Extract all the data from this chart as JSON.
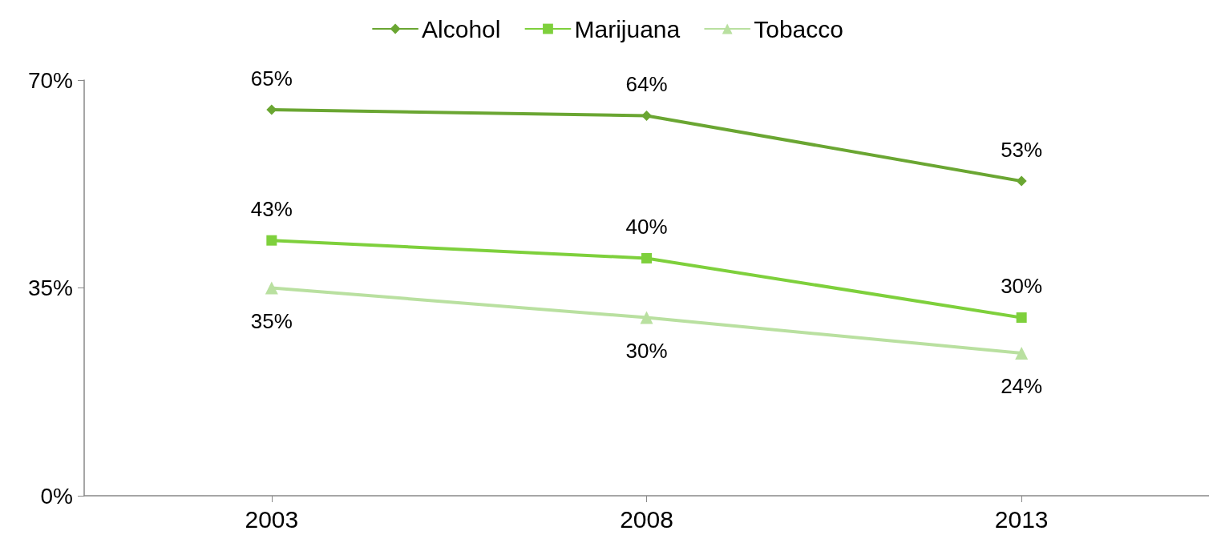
{
  "chart_data": {
    "type": "line",
    "categories": [
      "2003",
      "2008",
      "2013"
    ],
    "series": [
      {
        "name": "Alcohol",
        "color": "#6aa632",
        "marker": "diamond",
        "values": [
          65,
          64,
          53
        ],
        "value_labels": [
          "65%",
          "64%",
          "53%"
        ]
      },
      {
        "name": "Marijuana",
        "color": "#7ed03c",
        "marker": "square",
        "values": [
          43,
          40,
          30
        ],
        "value_labels": [
          "43%",
          "40%",
          "30%"
        ]
      },
      {
        "name": "Tobacco",
        "color": "#b9e0a0",
        "marker": "triangle",
        "values": [
          35,
          30,
          24
        ],
        "value_labels": [
          "35%",
          "30%",
          "24%"
        ]
      }
    ],
    "ylim": [
      0,
      70
    ],
    "yticks": [
      {
        "value": 0,
        "label": "0%"
      },
      {
        "value": 35,
        "label": "35%"
      },
      {
        "value": 70,
        "label": "70%"
      }
    ],
    "grid": false,
    "legend": "top",
    "line_style": "solid"
  }
}
